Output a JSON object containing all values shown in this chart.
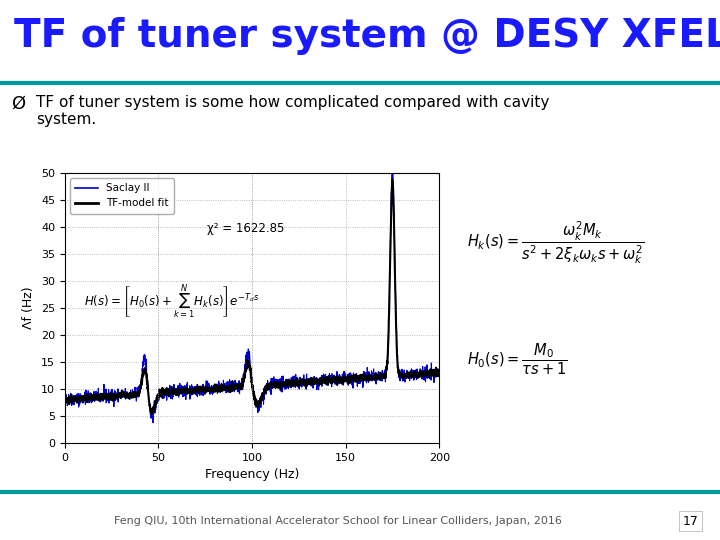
{
  "title": "TF of tuner system @ DESY XFEL",
  "bullet_text": "TF of tuner system is some how complicated compared with cavity\nsystem.",
  "footer_text": "Feng QIU, 10th International Accelerator School for Linear Colliders, Japan, 2016",
  "page_number": "17",
  "title_color": "#1a1aff",
  "title_fontsize": 28,
  "background_color": "#ffffff",
  "teal_bar_color": "#009999",
  "plot_xlim": [
    0,
    200
  ],
  "plot_ylim": [
    0,
    50
  ],
  "plot_xlabel": "Frequency (Hz)",
  "plot_ylabel": "Λf (Hz)",
  "plot_xticks": [
    0,
    50,
    100,
    150,
    200
  ],
  "plot_yticks": [
    0,
    5,
    10,
    15,
    20,
    25,
    30,
    35,
    40,
    45,
    50
  ],
  "legend_labels": [
    "Saclay II",
    "TF-model fit"
  ],
  "legend_colors": [
    "#0000cc",
    "#000000"
  ],
  "chi2_text": "χ² = 1622.85"
}
